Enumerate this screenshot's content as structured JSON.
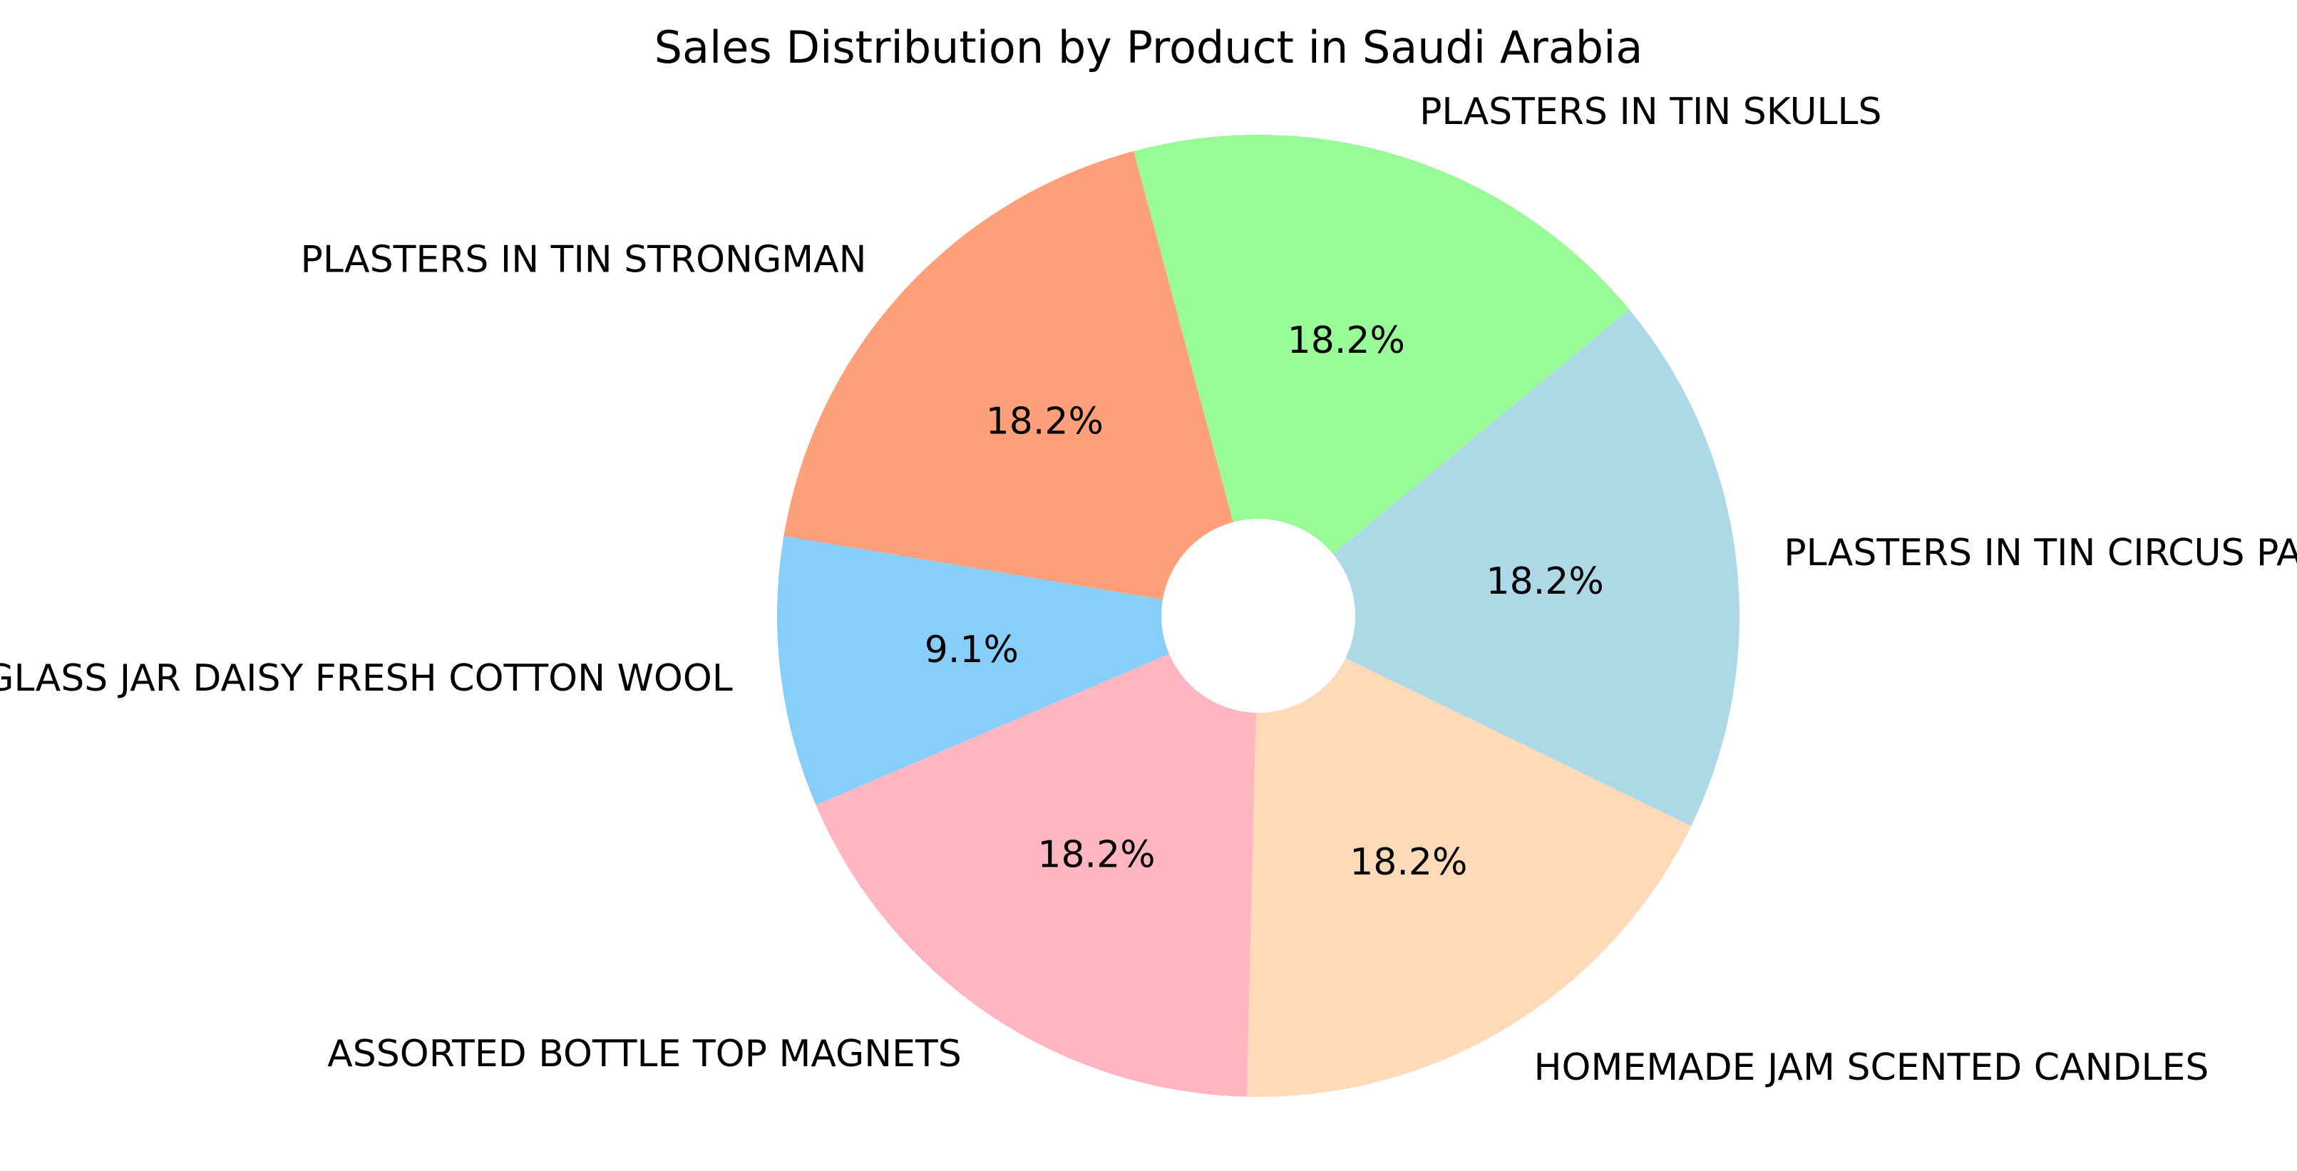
{
  "chart_data": {
    "type": "pie",
    "title": "Sales Distribution by Product in Saudi Arabia",
    "donut": true,
    "start_angle_deg": 105,
    "direction": "counterclockwise",
    "slices": [
      {
        "label": "PLASTERS IN TIN STRONGMAN",
        "value": 18.2,
        "pct_label": "18.2%",
        "color": "#FFA07A"
      },
      {
        "label": "GLASS JAR DAISY FRESH COTTON WOOL",
        "value": 9.1,
        "pct_label": "9.1%",
        "color": "#87CEFA"
      },
      {
        "label": "ASSORTED BOTTLE TOP  MAGNETS",
        "value": 18.2,
        "pct_label": "18.2%",
        "color": "#FFB6C1"
      },
      {
        "label": "HOMEMADE JAM SCENTED CANDLES",
        "value": 18.2,
        "pct_label": "18.2%",
        "color": "#FFDAB9"
      },
      {
        "label": "PLASTERS IN TIN CIRCUS PARADE",
        "value": 18.2,
        "pct_label": "18.2%",
        "color": "#ADD8E6"
      },
      {
        "label": "PLASTERS IN TIN SKULLS",
        "value": 18.2,
        "pct_label": "18.2%",
        "color": "#98FB98"
      }
    ]
  }
}
